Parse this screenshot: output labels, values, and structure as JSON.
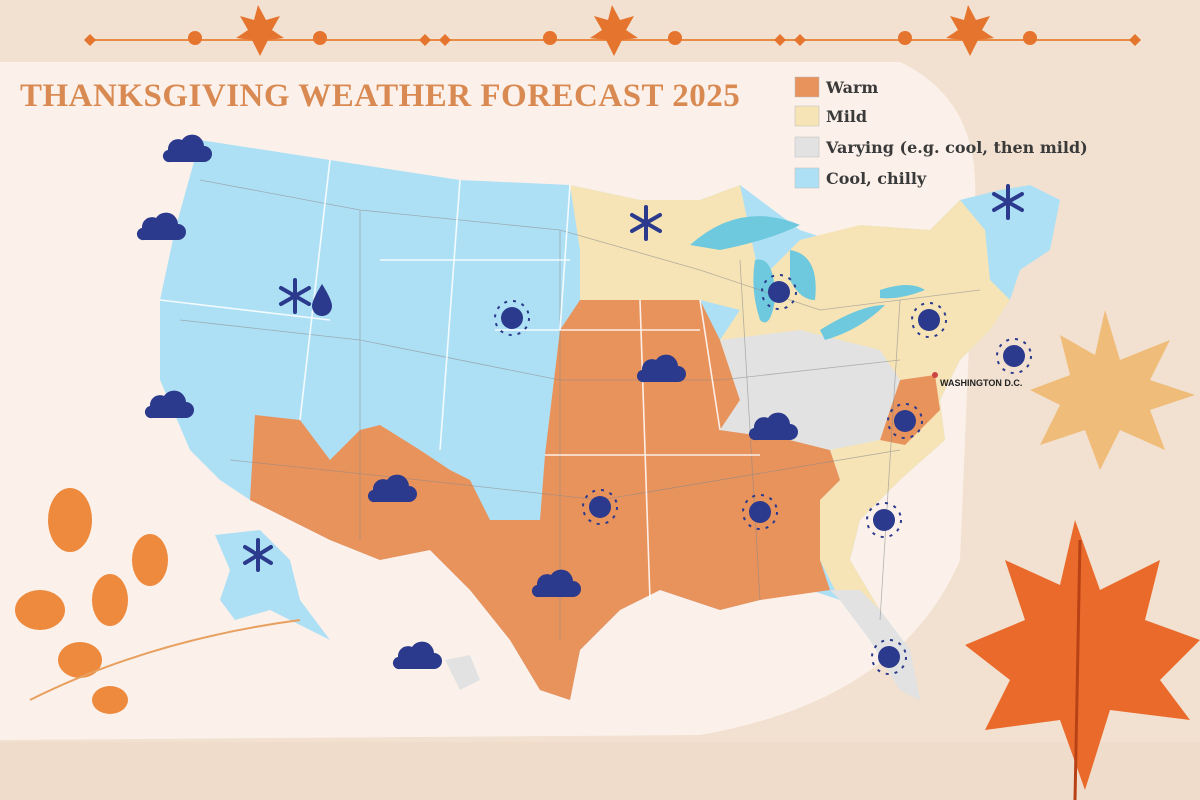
{
  "title": "THANKSGIVING WEATHER FORECAST 2025",
  "legend": [
    {
      "label": "Warm",
      "color": "#e8925c"
    },
    {
      "label": "Mild",
      "color": "#f6e4b6"
    },
    {
      "label": "Varying (e.g. cool, then mild)",
      "color": "#e2e2e2"
    },
    {
      "label": "Cool, chilly",
      "color": "#aee0f5"
    }
  ],
  "map_labels": [
    "WASHINGTON D.C."
  ]
}
